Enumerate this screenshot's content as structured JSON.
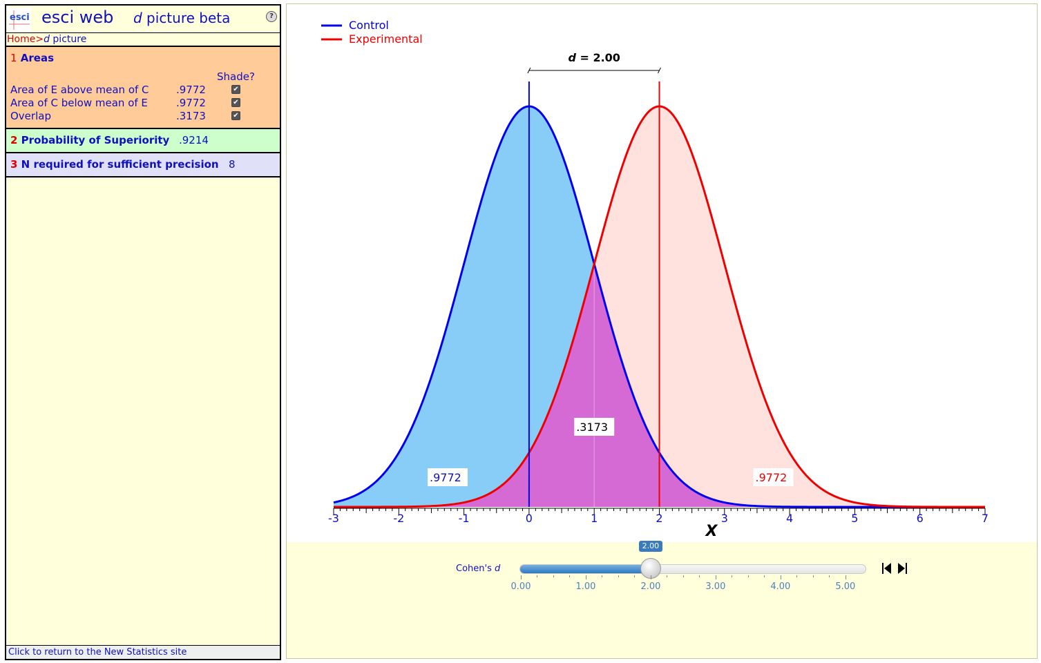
{
  "app": {
    "logo_text": "esci",
    "title": "esci web",
    "subtitle_italic": "d",
    "subtitle_rest": " picture beta",
    "help_glyph": "?"
  },
  "breadcrumb": {
    "home": "Home",
    "separator": ">",
    "current_italic": "d",
    "current_rest": " picture"
  },
  "sections": {
    "areas": {
      "number": "1",
      "title": "Areas",
      "shade_header": "Shade?",
      "rows": [
        {
          "label": "Area of E above mean of C",
          "value": ".9772",
          "shade": true
        },
        {
          "label": "Area of C below mean of E",
          "value": ".9772",
          "shade": true
        },
        {
          "label": "Overlap",
          "value": ".3173",
          "shade": true
        }
      ]
    },
    "superiority": {
      "number": "2",
      "title": "Probability of Superiority",
      "value": ".9214"
    },
    "n_required": {
      "number": "3",
      "title": "N required for sufficient precision",
      "value": "8"
    }
  },
  "footer_link": "Click to return to the New Statistics site",
  "slider": {
    "label_text": "Cohen's ",
    "label_italic": "d",
    "value": 2.0,
    "value_label": "2.00",
    "min": 0,
    "max": 5.3,
    "tick_labels": [
      "0.00",
      "1.00",
      "2.00",
      "3.00",
      "4.00",
      "5.00"
    ]
  },
  "colors": {
    "control": "#0000ee",
    "experimental": "#ee0000",
    "control_fill": "#87cdf7",
    "experimental_fill": "#ffe2de",
    "overlap_fill": "#d56ad5"
  },
  "chart_data": {
    "type": "area",
    "legend": [
      "Control",
      "Experimental"
    ],
    "legend_position": "top-left",
    "series": [
      {
        "name": "Control",
        "mean": 0,
        "sd": 1
      },
      {
        "name": "Experimental",
        "mean": 2,
        "sd": 1
      }
    ],
    "xlabel": "X",
    "xlim": [
      -3,
      7
    ],
    "x_ticks": [
      "-3",
      "-2",
      "-1",
      "0",
      "1",
      "2",
      "3",
      "4",
      "5",
      "6",
      "7"
    ],
    "d_label_italic": "d",
    "d_label_rest": " = 2.00",
    "annotations": {
      "control_tail": ".9772",
      "overlap": ".3173",
      "experimental_tail": ".9772"
    }
  }
}
